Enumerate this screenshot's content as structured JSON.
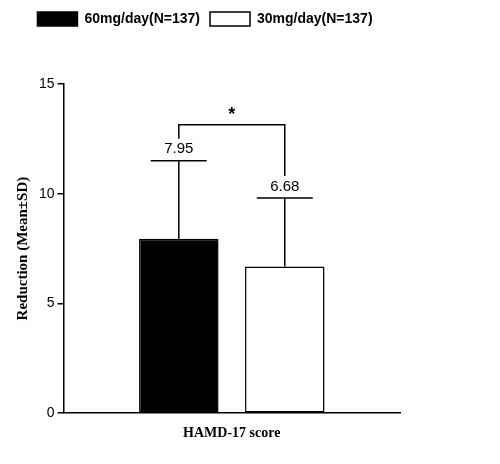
{
  "chart_data": {
    "type": "bar",
    "categories": [
      "HAMD-17 score"
    ],
    "series": [
      {
        "name": "60mg/day(N=137)",
        "color": "#000000",
        "values": [
          7.95
        ],
        "sd": [
          3.55
        ]
      },
      {
        "name": "30mg/day(N=137)",
        "color": "#ffffff",
        "values": [
          6.68
        ],
        "sd": [
          3.12
        ]
      }
    ],
    "y_label": "Reduction (Mean±SD)",
    "ylim": [
      0,
      15
    ],
    "yticks": [
      0,
      5,
      10,
      15
    ],
    "grid": false,
    "legend": "top",
    "data_labels": true,
    "annotations": [
      {
        "text": "*"
      }
    ]
  }
}
